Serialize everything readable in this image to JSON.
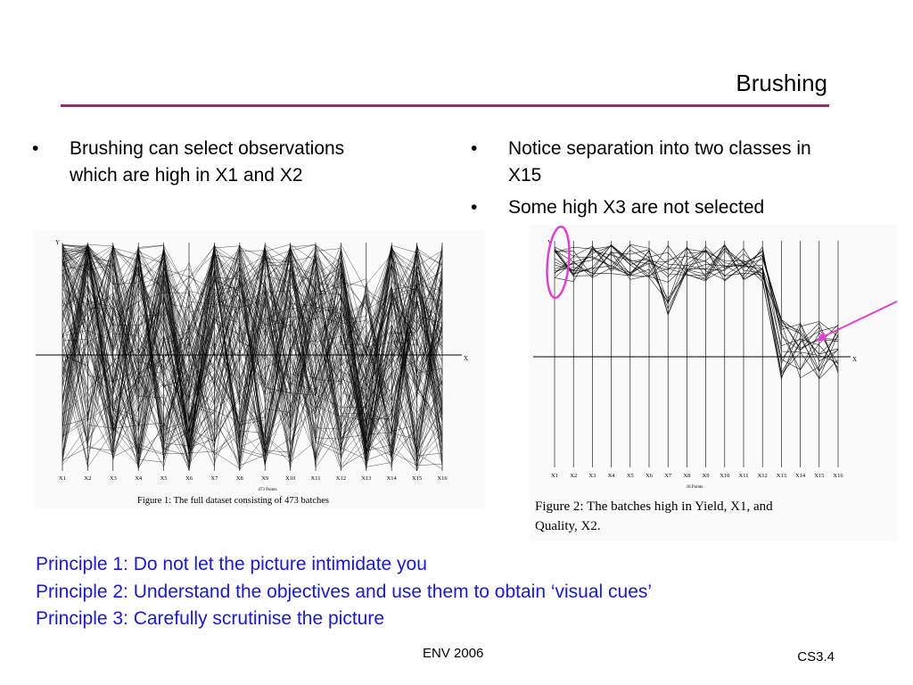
{
  "slide": {
    "title": "Brushing",
    "left_bullets": [
      "Brushing can select observations which are high in X1 and X2"
    ],
    "right_bullets": [
      "Notice separation into two classes in X15",
      "Some high X3 are not selected"
    ],
    "principles": [
      "Principle 1: Do not let the picture intimidate you",
      "Principle 2: Understand the objectives and use them to obtain ‘visual cues’",
      "Principle 3: Carefully scrutinise the picture"
    ],
    "footer": "ENV 2006",
    "slide_number": "CS3.4",
    "accent_color": "#c0157a",
    "principle_color": "#1a1ac8"
  },
  "figure1": {
    "axes": [
      "X1",
      "X2",
      "X3",
      "X4",
      "X5",
      "X6",
      "X7",
      "X8",
      "X9",
      "X10",
      "X11",
      "X12",
      "X13",
      "X14",
      "X15",
      "X16"
    ],
    "y_label": "Y",
    "x_label": "X",
    "points_label": "473 Points",
    "caption": "Figure 1: The full dataset consisting of 473 batches"
  },
  "figure2": {
    "axes": [
      "X1",
      "X2",
      "X3",
      "X4",
      "X5",
      "X6",
      "X7",
      "X8",
      "X9",
      "X10",
      "X11",
      "X12",
      "X13",
      "X14",
      "X15",
      "X16"
    ],
    "y_label": "Y",
    "x_label": "X",
    "points_label": "18 Points",
    "caption_line1": "Figure 2:  The batches high in Yield, X1, and",
    "caption_line2": "Quality, X2."
  }
}
